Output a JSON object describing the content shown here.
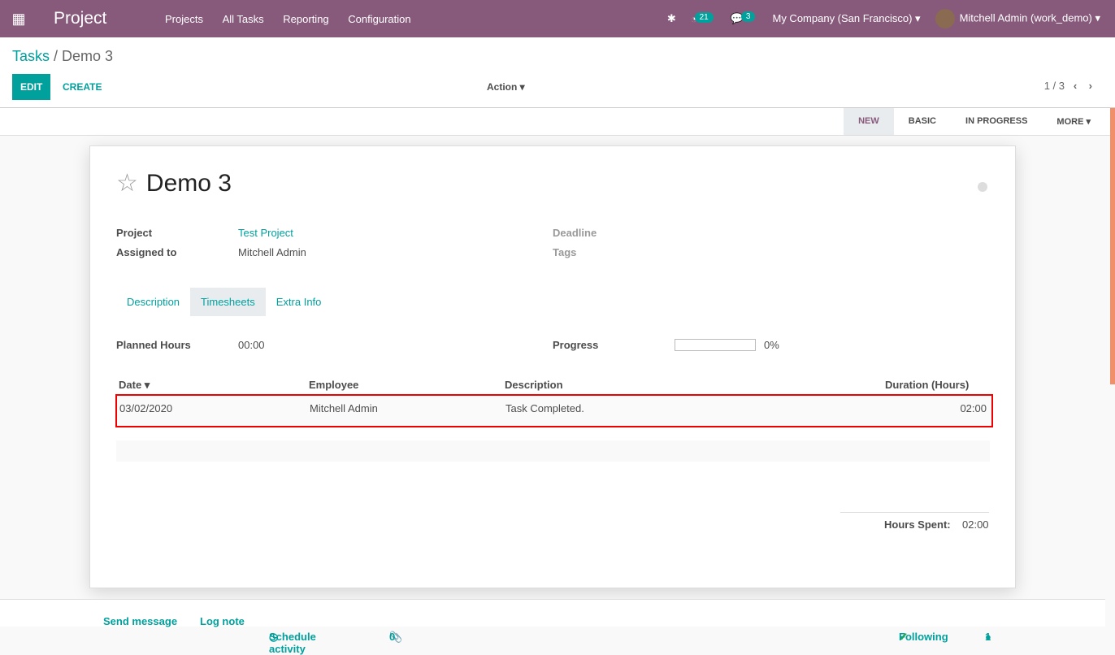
{
  "nav": {
    "app": "Project",
    "menu": [
      "Projects",
      "All Tasks",
      "Reporting",
      "Configuration"
    ],
    "activities": "21",
    "messages": "3",
    "company": "My Company (San Francisco)",
    "user": "Mitchell Admin (work_demo)"
  },
  "breadcrumb": {
    "parent": "Tasks",
    "current": "Demo 3"
  },
  "buttons": {
    "edit": "EDIT",
    "create": "CREATE",
    "action": "Action"
  },
  "pager": "1 / 3",
  "stages": [
    "NEW",
    "BASIC",
    "IN PROGRESS",
    "MORE"
  ],
  "task": {
    "title": "Demo 3",
    "project_label": "Project",
    "project": "Test Project",
    "assigned_label": "Assigned to",
    "assigned": "Mitchell Admin",
    "deadline_label": "Deadline",
    "tags_label": "Tags"
  },
  "tabs": [
    "Description",
    "Timesheets",
    "Extra Info"
  ],
  "timesheet": {
    "planned_label": "Planned Hours",
    "planned": "00:00",
    "progress_label": "Progress",
    "progress": 0,
    "progress_text": "0%",
    "columns": [
      "Date",
      "Employee",
      "Description",
      "Duration (Hours)"
    ],
    "rows": [
      {
        "date": "03/02/2020",
        "employee": "Mitchell Admin",
        "description": "Task Completed.",
        "duration": "02:00"
      }
    ],
    "spent_label": "Hours Spent:",
    "spent": "02:00"
  },
  "chatter": {
    "send": "Send message",
    "log": "Log note",
    "schedule": "Schedule activity",
    "attachments": "0",
    "following": "Following",
    "followers": "1"
  },
  "colors": {
    "brand": "#875a7b",
    "accent": "#00a09d"
  }
}
